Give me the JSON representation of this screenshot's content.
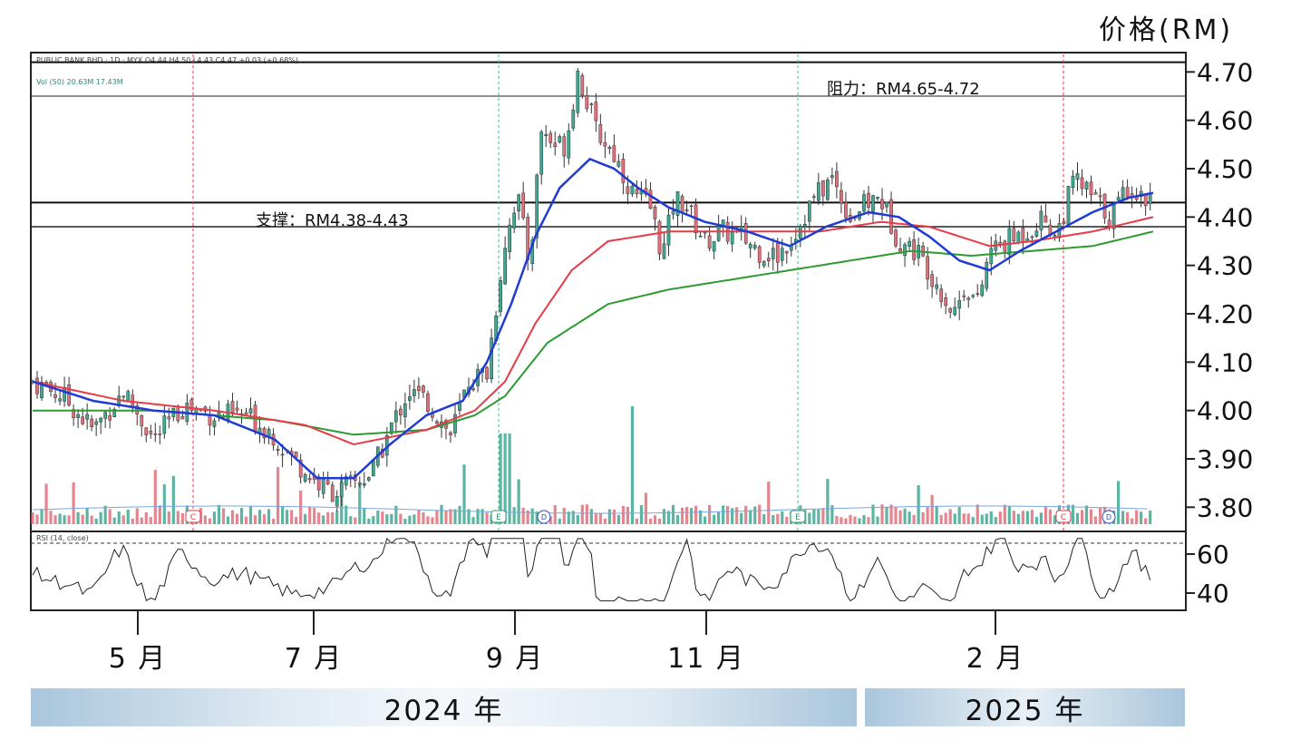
{
  "chart_data": {
    "type": "candlestick",
    "y_unit_label": "价格(RM)",
    "header_lines": [
      "PUBLIC BANK BHD · 1D · MYX  O4.44  H4.50  L4.43  C4.47  +0.03 (+0.68%)",
      "Vol (50)  20.63M  17.43M"
    ],
    "ylim": [
      3.75,
      4.74
    ],
    "price_ticks": [
      "4.70",
      "4.60",
      "4.50",
      "4.40",
      "4.30",
      "4.20",
      "4.10",
      "4.00",
      "3.90",
      "3.80"
    ],
    "rsi_ticks": [
      "60",
      "40"
    ],
    "rsi_label": "RSI (14, close)",
    "month_ticks": [
      "5 月",
      "7 月",
      "9 月",
      "11 月",
      "2 月"
    ],
    "years": [
      "2024 年",
      "2025 年"
    ],
    "support_label": "支撑：RM4.38-4.43",
    "resistance_label": "阻力：RM4.65-4.72",
    "support_zone": [
      4.38,
      4.43
    ],
    "resistance_zone": [
      4.65,
      4.72
    ],
    "price_path": [
      [
        0,
        4.06
      ],
      [
        10,
        4.03
      ],
      [
        20,
        3.96
      ],
      [
        30,
        4.04
      ],
      [
        40,
        3.94
      ],
      [
        50,
        4.01
      ],
      [
        60,
        3.99
      ],
      [
        70,
        3.99
      ],
      [
        78,
        3.96
      ],
      [
        86,
        3.9
      ],
      [
        94,
        3.85
      ],
      [
        100,
        3.83
      ],
      [
        106,
        3.85
      ],
      [
        112,
        3.87
      ],
      [
        118,
        3.96
      ],
      [
        124,
        4.04
      ],
      [
        130,
        4.02
      ],
      [
        138,
        3.95
      ],
      [
        144,
        4.06
      ],
      [
        150,
        4.08
      ],
      [
        156,
        4.35
      ],
      [
        160,
        4.45
      ],
      [
        164,
        4.3
      ],
      [
        168,
        4.58
      ],
      [
        172,
        4.55
      ],
      [
        176,
        4.55
      ],
      [
        180,
        4.7
      ],
      [
        186,
        4.58
      ],
      [
        192,
        4.53
      ],
      [
        198,
        4.45
      ],
      [
        204,
        4.42
      ],
      [
        208,
        4.32
      ],
      [
        212,
        4.44
      ],
      [
        216,
        4.42
      ],
      [
        222,
        4.35
      ],
      [
        228,
        4.37
      ],
      [
        234,
        4.36
      ],
      [
        240,
        4.33
      ],
      [
        246,
        4.32
      ],
      [
        252,
        4.37
      ],
      [
        258,
        4.44
      ],
      [
        264,
        4.48
      ],
      [
        270,
        4.4
      ],
      [
        276,
        4.43
      ],
      [
        280,
        4.44
      ],
      [
        286,
        4.35
      ],
      [
        292,
        4.33
      ],
      [
        298,
        4.27
      ],
      [
        304,
        4.2
      ],
      [
        308,
        4.26
      ],
      [
        312,
        4.22
      ],
      [
        316,
        4.33
      ],
      [
        322,
        4.35
      ],
      [
        328,
        4.37
      ],
      [
        334,
        4.4
      ],
      [
        338,
        4.36
      ],
      [
        344,
        4.48
      ],
      [
        350,
        4.44
      ],
      [
        356,
        4.4
      ],
      [
        362,
        4.47
      ],
      [
        366,
        4.44
      ],
      [
        370,
        4.45
      ]
    ],
    "ema20_path": [
      [
        0,
        4.06
      ],
      [
        20,
        4.02
      ],
      [
        40,
        4.0
      ],
      [
        60,
        3.99
      ],
      [
        80,
        3.94
      ],
      [
        94,
        3.86
      ],
      [
        106,
        3.86
      ],
      [
        118,
        3.93
      ],
      [
        130,
        3.99
      ],
      [
        142,
        4.02
      ],
      [
        150,
        4.1
      ],
      [
        158,
        4.22
      ],
      [
        166,
        4.36
      ],
      [
        174,
        4.46
      ],
      [
        184,
        4.52
      ],
      [
        192,
        4.5
      ],
      [
        200,
        4.46
      ],
      [
        210,
        4.42
      ],
      [
        222,
        4.39
      ],
      [
        236,
        4.37
      ],
      [
        250,
        4.34
      ],
      [
        262,
        4.38
      ],
      [
        276,
        4.41
      ],
      [
        286,
        4.4
      ],
      [
        296,
        4.36
      ],
      [
        306,
        4.31
      ],
      [
        316,
        4.29
      ],
      [
        326,
        4.33
      ],
      [
        338,
        4.37
      ],
      [
        350,
        4.41
      ],
      [
        362,
        4.44
      ],
      [
        370,
        4.45
      ]
    ],
    "sma50_path": [
      [
        0,
        4.06
      ],
      [
        30,
        4.02
      ],
      [
        60,
        4.0
      ],
      [
        90,
        3.97
      ],
      [
        106,
        3.93
      ],
      [
        130,
        3.96
      ],
      [
        146,
        4.0
      ],
      [
        156,
        4.06
      ],
      [
        166,
        4.18
      ],
      [
        178,
        4.29
      ],
      [
        190,
        4.35
      ],
      [
        210,
        4.37
      ],
      [
        240,
        4.37
      ],
      [
        260,
        4.37
      ],
      [
        280,
        4.39
      ],
      [
        296,
        4.38
      ],
      [
        316,
        4.34
      ],
      [
        330,
        4.35
      ],
      [
        350,
        4.37
      ],
      [
        370,
        4.4
      ]
    ],
    "sma100_path": [
      [
        0,
        4.0
      ],
      [
        40,
        4.0
      ],
      [
        80,
        3.98
      ],
      [
        106,
        3.95
      ],
      [
        130,
        3.96
      ],
      [
        146,
        3.99
      ],
      [
        156,
        4.03
      ],
      [
        170,
        4.14
      ],
      [
        190,
        4.22
      ],
      [
        210,
        4.25
      ],
      [
        240,
        4.28
      ],
      [
        270,
        4.31
      ],
      [
        290,
        4.33
      ],
      [
        310,
        4.32
      ],
      [
        330,
        4.33
      ],
      [
        350,
        4.34
      ],
      [
        370,
        4.37
      ]
    ],
    "colors": {
      "up_candle": "#3ea892",
      "down_candle": "#e0707a",
      "ema20": "#1f3bd4",
      "sma50": "#e83a47",
      "sma100": "#2e9a33",
      "vol_ma": "#7aa6e0",
      "event_line_red": "#e03545",
      "event_line_green": "#3fb88a"
    }
  }
}
